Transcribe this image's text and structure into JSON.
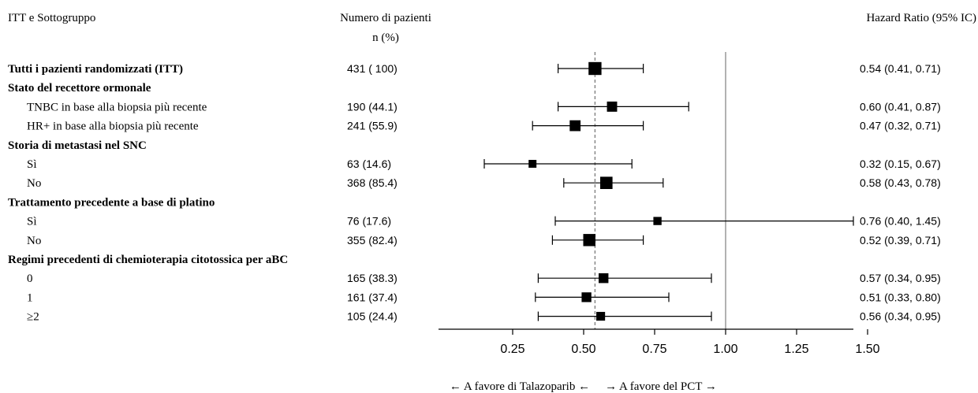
{
  "chart_data": {
    "type": "forest",
    "headers": {
      "subgroup": "ITT e Sottogruppo",
      "n_line1": "Numero di pazienti",
      "n_line2": "n (%)",
      "hr": "Hazard Ratio (95% IC)"
    },
    "rows": [
      {
        "label": "Tutti i pazienti randomizzati (ITT)",
        "bold": true,
        "n": "431 ( 100)",
        "hr": 0.54,
        "lo": 0.41,
        "hi": 0.71,
        "hr_text": "0.54 (0.41, 0.71)",
        "weight": 431
      },
      {
        "label": "Stato del recettore ormonale",
        "bold": true,
        "header": true
      },
      {
        "label": "TNBC in base alla biopsia più recente",
        "indent": true,
        "n": "190 (44.1)",
        "hr": 0.6,
        "lo": 0.41,
        "hi": 0.87,
        "hr_text": "0.60 (0.41, 0.87)",
        "weight": 190
      },
      {
        "label": "HR+ in base alla biopsia più recente",
        "indent": true,
        "n": "241 (55.9)",
        "hr": 0.47,
        "lo": 0.32,
        "hi": 0.71,
        "hr_text": "0.47 (0.32, 0.71)",
        "weight": 241
      },
      {
        "label": "Storia di metastasi nel SNC",
        "bold": true,
        "header": true
      },
      {
        "label": "Sì",
        "indent": true,
        "n": "63 (14.6)",
        "hr": 0.32,
        "lo": 0.15,
        "hi": 0.67,
        "hr_text": "0.32 (0.15, 0.67)",
        "weight": 63
      },
      {
        "label": "No",
        "indent": true,
        "n": "368 (85.4)",
        "hr": 0.58,
        "lo": 0.43,
        "hi": 0.78,
        "hr_text": "0.58 (0.43, 0.78)",
        "weight": 368
      },
      {
        "label": "Trattamento precedente a base di platino",
        "bold": true,
        "header": true
      },
      {
        "label": "Sì",
        "indent": true,
        "n": "76 (17.6)",
        "hr": 0.76,
        "lo": 0.4,
        "hi": 1.45,
        "hr_text": "0.76 (0.40, 1.45)",
        "weight": 76
      },
      {
        "label": "No",
        "indent": true,
        "n": "355 (82.4)",
        "hr": 0.52,
        "lo": 0.39,
        "hi": 0.71,
        "hr_text": "0.52 (0.39, 0.71)",
        "weight": 355
      },
      {
        "label": "Regimi precedenti di chemioterapia citotossica per aBC",
        "bold": true,
        "header": true
      },
      {
        "label": "0",
        "indent": true,
        "n": "165 (38.3)",
        "hr": 0.57,
        "lo": 0.34,
        "hi": 0.95,
        "hr_text": "0.57 (0.34, 0.95)",
        "weight": 165
      },
      {
        "label": "1",
        "indent": true,
        "n": "161 (37.4)",
        "hr": 0.51,
        "lo": 0.33,
        "hi": 0.8,
        "hr_text": "0.51 (0.33, 0.80)",
        "weight": 161
      },
      {
        "label": "≥2",
        "indent": true,
        "n": "105 (24.4)",
        "hr": 0.56,
        "lo": 0.34,
        "hi": 0.95,
        "hr_text": "0.56 (0.34, 0.95)",
        "weight": 105
      }
    ],
    "x_ticks": [
      0.25,
      0.5,
      0.75,
      1.0,
      1.25,
      1.5
    ],
    "x_tick_labels": [
      "0.25",
      "0.50",
      "0.75",
      "1.00",
      "1.25",
      "1.50"
    ],
    "xlim": [
      0.15,
      1.53
    ],
    "null_line": 1.0,
    "overall_line": 0.54,
    "favor_left": "← A favore di Talazoparib ←",
    "favor_right": "→ A favore del PCT →",
    "colors": {
      "ink": "#000000",
      "null_line": "#999999",
      "overall_line": "#888888"
    }
  }
}
